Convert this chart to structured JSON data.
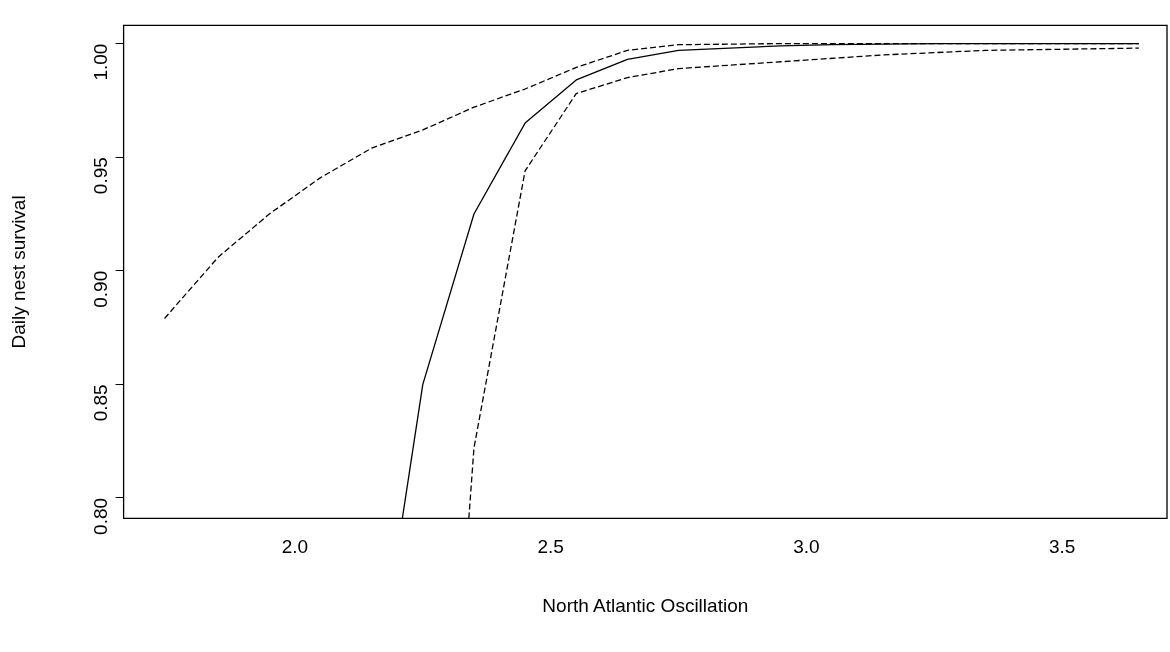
{
  "chart_data": {
    "type": "line",
    "xlabel": "North Atlantic Oscillation",
    "ylabel": "Daily nest survival",
    "xlim": [
      1.665,
      3.705
    ],
    "ylim": [
      0.791,
      1.008
    ],
    "xticks": [
      {
        "value": 2,
        "label": "2.0"
      },
      {
        "value": 2.5,
        "label": "2.5"
      },
      {
        "value": 3,
        "label": "3.0"
      },
      {
        "value": 3.5,
        "label": "3.5"
      }
    ],
    "yticks": [
      {
        "value": 0.8,
        "label": "0.80"
      },
      {
        "value": 0.85,
        "label": "0.85"
      },
      {
        "value": 0.9,
        "label": "0.90"
      },
      {
        "value": 0.95,
        "label": "0.95"
      },
      {
        "value": 1,
        "label": "1.00"
      }
    ],
    "grid": false,
    "legend": false,
    "marker": "none",
    "series": [
      {
        "color": "#000000",
        "line_style": "solid",
        "x": [
          2.21,
          2.25,
          2.35,
          2.45,
          2.55,
          2.65,
          2.75,
          2.85,
          2.95,
          3.05,
          3.25,
          3.45,
          3.65
        ],
        "values": [
          0.791,
          0.85,
          0.925,
          0.965,
          0.984,
          0.993,
          0.997,
          0.998,
          0.999,
          0.9995,
          1.0,
          1.0,
          1.0
        ]
      },
      {
        "color": "#000000",
        "line_style": "dashed",
        "x": [
          1.745,
          1.85,
          1.95,
          2.05,
          2.15,
          2.25,
          2.35,
          2.45,
          2.55,
          2.65,
          2.75,
          2.95,
          3.25,
          3.65
        ],
        "values": [
          0.879,
          0.906,
          0.925,
          0.941,
          0.954,
          0.962,
          0.972,
          0.98,
          0.9895,
          0.997,
          0.9995,
          1.0,
          1.0,
          1.0
        ]
      },
      {
        "color": "#000000",
        "line_style": "dashed",
        "x": [
          2.34,
          2.35,
          2.45,
          2.55,
          2.65,
          2.75,
          2.95,
          3.15,
          3.35,
          3.65
        ],
        "values": [
          0.791,
          0.822,
          0.944,
          0.978,
          0.985,
          0.989,
          0.992,
          0.995,
          0.997,
          0.998
        ]
      }
    ]
  }
}
